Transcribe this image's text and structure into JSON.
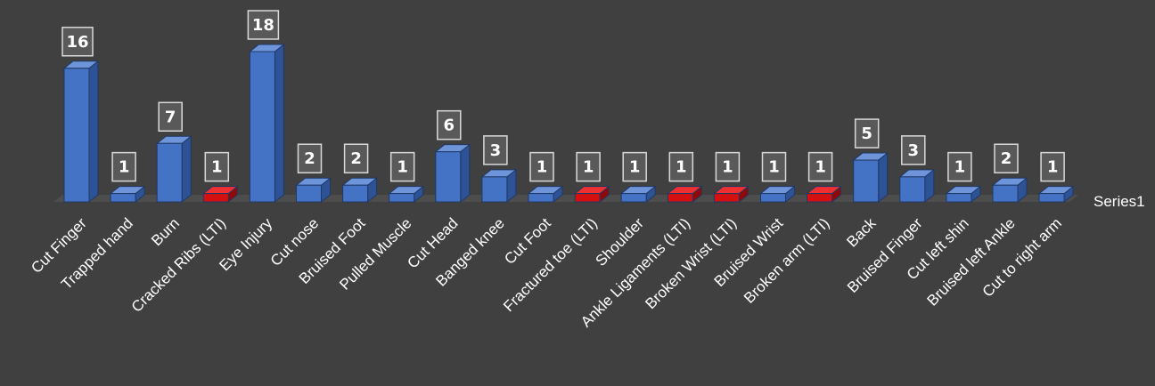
{
  "chart_data": {
    "type": "bar",
    "categories": [
      "Cut Finger",
      "Trapped hand",
      "Burn",
      "Cracked Ribs (LTI)",
      "Eye Injury",
      "Cut nose",
      "Bruised Foot",
      "Pulled Muscle",
      "Cut Head",
      "Banged knee",
      "Cut Foot",
      "Fractured toe (LTI)",
      "Shoulder",
      "Ankle Ligaments (LTI)",
      "Broken Wrist (LTI)",
      "Bruised Wrist",
      "Broken arm (LTI)",
      "Back",
      "Bruised Finger",
      "Cut left shin",
      "Bruised left Ankle",
      "Cut to right arm"
    ],
    "series": [
      {
        "name": "Series1",
        "values": [
          16,
          1,
          7,
          1,
          18,
          2,
          2,
          1,
          6,
          3,
          1,
          1,
          1,
          1,
          1,
          1,
          1,
          5,
          3,
          1,
          2,
          1
        ]
      }
    ],
    "highlighted": [
      false,
      false,
      false,
      true,
      false,
      false,
      false,
      false,
      false,
      false,
      false,
      true,
      false,
      true,
      true,
      false,
      true,
      false,
      false,
      false,
      false,
      false
    ],
    "ylim": [
      0,
      18
    ],
    "legend_position": "right",
    "data_labels": true,
    "style": "3d-column",
    "colors": {
      "background": "#404040",
      "bar_front": "#4472C4",
      "bar_top": "#6E94DA",
      "bar_side": "#2E5296",
      "highlight_front": "#D41010",
      "highlight_top": "#F03030",
      "highlight_side": "#8E0A0A",
      "bar_stroke": "#1F3864",
      "label_box_fill": "#595959",
      "label_box_stroke": "#D9D9D9",
      "text": "#FFFFFF",
      "floor": "#4D4D4D"
    }
  }
}
